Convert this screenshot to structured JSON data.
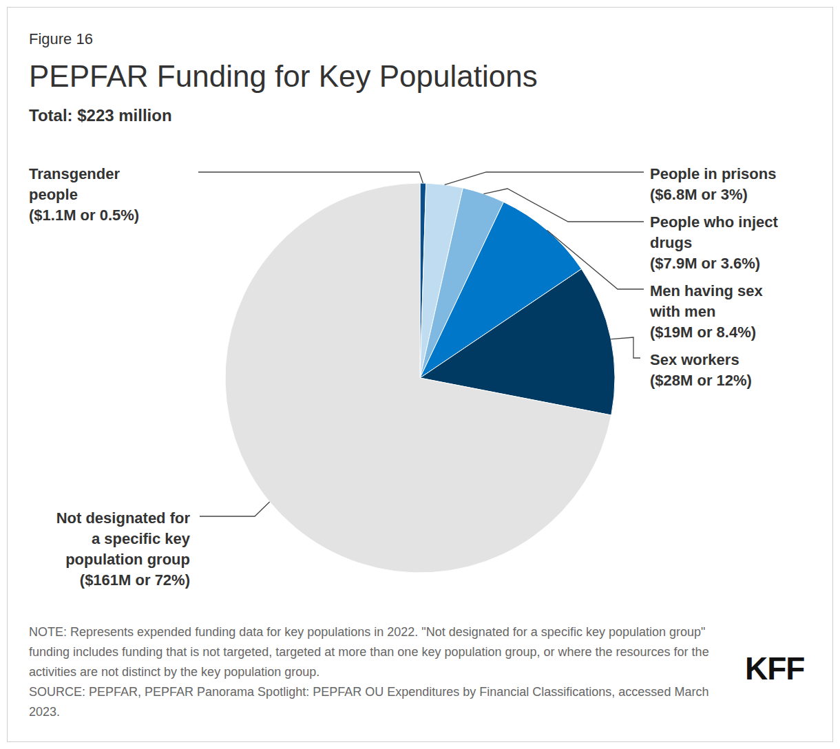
{
  "chart_data": {
    "type": "pie",
    "figure_label": "Figure 16",
    "title": "PEPFAR Funding for Key Populations",
    "subtitle": "Total: $223 million",
    "categories": [
      "Transgender people",
      "People in prisons",
      "People who inject drugs",
      "Men having sex with men",
      "Sex workers",
      "Not designated for a specific key population group"
    ],
    "values": [
      1.1,
      6.8,
      7.9,
      19,
      28,
      161
    ],
    "value_labels": [
      "($1.1M or 0.5%)",
      "($6.8M or 3%)",
      "($7.9M or 3.6%)",
      "($19M or 8.4%)",
      "($28M or 12%)",
      "($161M or 72%)"
    ],
    "colors": [
      "#0b4f8a",
      "#bfdcf0",
      "#7fb9e2",
      "#0077c8",
      "#003a63",
      "#e3e3e3"
    ],
    "data_labels": true,
    "note": "NOTE: Represents expended funding data for key populations in 2022. \"Not designated for a specific key population group\" funding includes funding that is not targeted, targeted at more than one key population group, or where the resources for the activities are not distinct by the key population group.",
    "source": "SOURCE: PEPFAR, PEPFAR Panorama Spotlight: PEPFAR OU Expenditures by Financial Classifications, accessed March 2023.",
    "brand": "KFF"
  }
}
